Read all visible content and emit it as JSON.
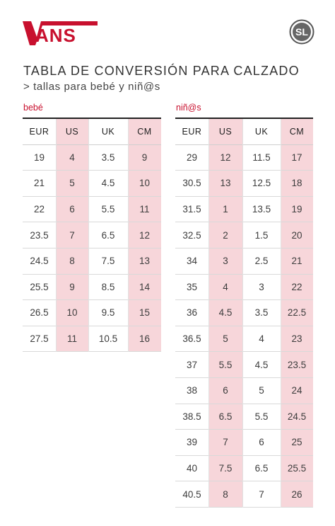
{
  "brand": {
    "logo_text": "VANS",
    "badge_text": "SL",
    "accent_color": "#c8102e",
    "highlight_color": "#f7d6da"
  },
  "title": "TABLA DE CONVERSIÓN PARA CALZADO",
  "subtitle": "> tallas para bebé y niñ@s",
  "baby": {
    "label": "bebé",
    "headers": [
      "EUR",
      "US",
      "UK",
      "CM"
    ],
    "rows": [
      [
        "19",
        "4",
        "3.5",
        "9"
      ],
      [
        "21",
        "5",
        "4.5",
        "10"
      ],
      [
        "22",
        "6",
        "5.5",
        "11"
      ],
      [
        "23.5",
        "7",
        "6.5",
        "12"
      ],
      [
        "24.5",
        "8",
        "7.5",
        "13"
      ],
      [
        "25.5",
        "9",
        "8.5",
        "14"
      ],
      [
        "26.5",
        "10",
        "9.5",
        "15"
      ],
      [
        "27.5",
        "11",
        "10.5",
        "16"
      ]
    ]
  },
  "kids": {
    "label": "niñ@s",
    "headers": [
      "EUR",
      "US",
      "UK",
      "CM"
    ],
    "rows": [
      [
        "29",
        "12",
        "11.5",
        "17"
      ],
      [
        "30.5",
        "13",
        "12.5",
        "18"
      ],
      [
        "31.5",
        "1",
        "13.5",
        "19"
      ],
      [
        "32.5",
        "2",
        "1.5",
        "20"
      ],
      [
        "34",
        "3",
        "2.5",
        "21"
      ],
      [
        "35",
        "4",
        "3",
        "22"
      ],
      [
        "36",
        "4.5",
        "3.5",
        "22.5"
      ],
      [
        "36.5",
        "5",
        "4",
        "23"
      ],
      [
        "37",
        "5.5",
        "4.5",
        "23.5"
      ],
      [
        "38",
        "6",
        "5",
        "24"
      ],
      [
        "38.5",
        "6.5",
        "5.5",
        "24.5"
      ],
      [
        "39",
        "7",
        "6",
        "25"
      ],
      [
        "40",
        "7.5",
        "6.5",
        "25.5"
      ],
      [
        "40.5",
        "8",
        "7",
        "26"
      ]
    ]
  }
}
